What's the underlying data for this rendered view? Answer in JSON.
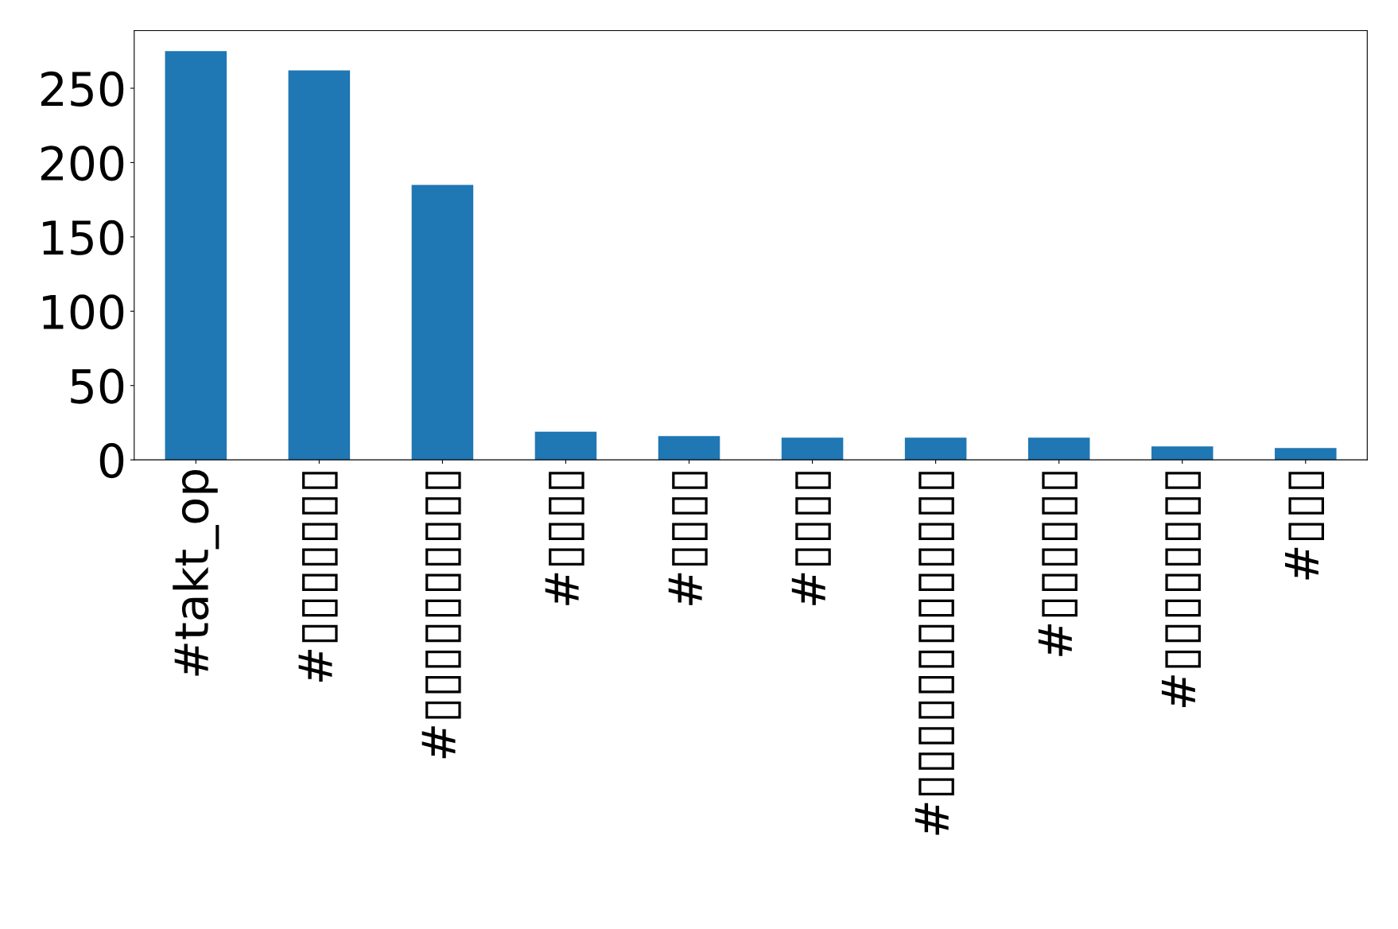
{
  "chart_data": {
    "type": "bar",
    "categories": [
      "#takt_op",
      "#▯▯▯▯▯▯▯",
      "#▯▯▯▯▯▯▯▯▯▯",
      "#▯▯▯▯",
      "#▯▯▯▯",
      "#▯▯▯▯",
      "#▯▯▯▯▯▯▯▯▯▯▯▯▯",
      "#▯▯▯▯▯▯",
      "#▯▯▯▯▯▯▯▯",
      "#▯▯▯"
    ],
    "values": [
      275,
      262,
      185,
      19,
      16,
      15,
      15,
      15,
      9,
      8
    ],
    "color": "#1f77b4",
    "ylim": [
      0,
      288.75
    ],
    "yticks": [
      0,
      50,
      100,
      150,
      200,
      250
    ],
    "grid": false,
    "legend": false
  }
}
